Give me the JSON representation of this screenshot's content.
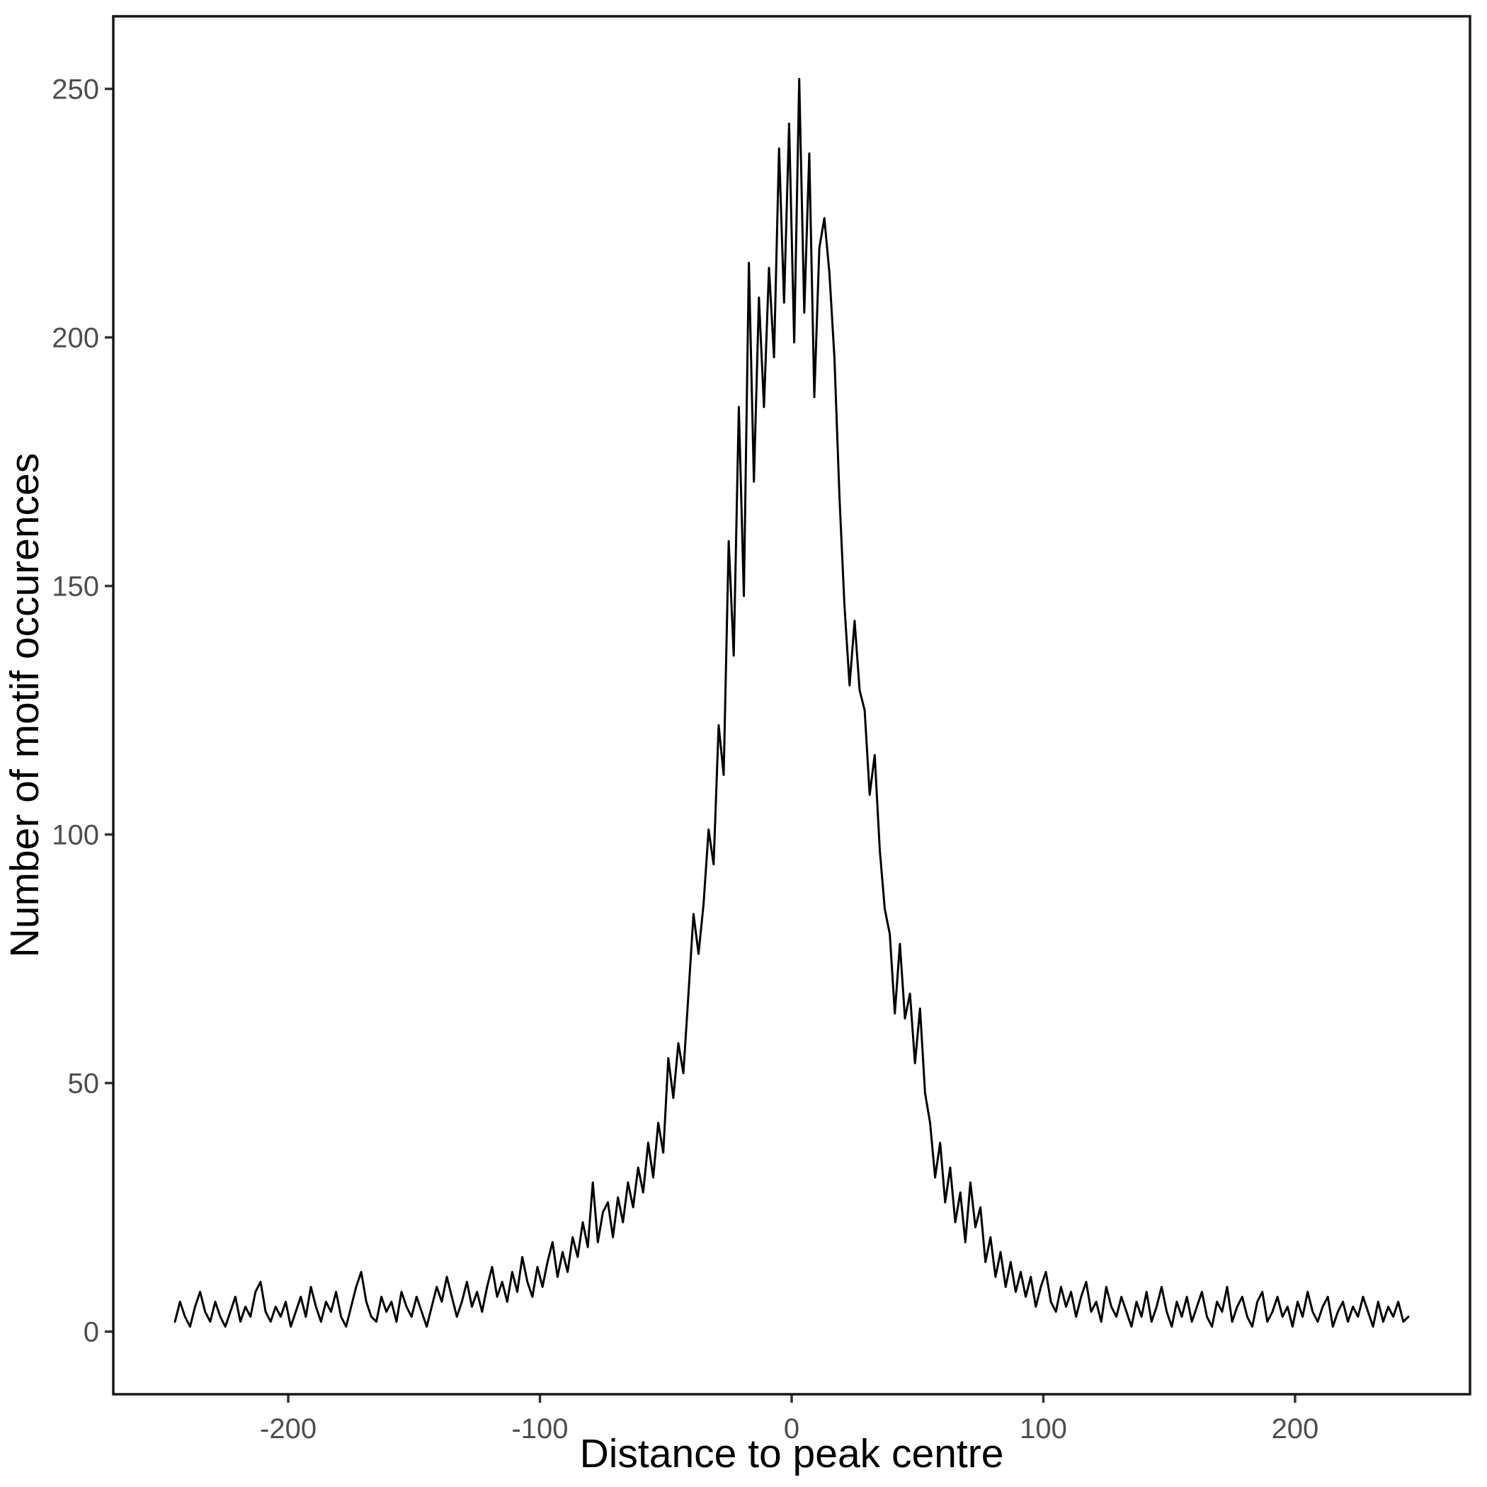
{
  "colors": {
    "background": "#ffffff",
    "panel_border": "#171717",
    "tick_mark": "#333333",
    "tick_label": "#4d4d4d",
    "axis_title": "#000000",
    "line": "#000000"
  },
  "chart_data": {
    "type": "line",
    "title": "",
    "xlabel": "Distance to peak centre",
    "ylabel": "Number of motif occurences",
    "legend": false,
    "grid": false,
    "xlim": [
      -269.5,
      269.5
    ],
    "ylim": [
      -12.6,
      264.6
    ],
    "x_tick_values": [
      -200,
      -100,
      0,
      100,
      200
    ],
    "x_tick_labels": [
      "-200",
      "-100",
      "0",
      "100",
      "200"
    ],
    "y_tick_values": [
      0,
      50,
      100,
      150,
      200,
      250
    ],
    "y_tick_labels": [
      "0",
      "50",
      "100",
      "150",
      "200",
      "250"
    ],
    "series": [
      {
        "name": "motif occurrences",
        "x_start": -245,
        "x_step": 2,
        "values": [
          2,
          6,
          3,
          1,
          5,
          8,
          4,
          2,
          6,
          3,
          1,
          4,
          7,
          2,
          5,
          3,
          8,
          10,
          4,
          2,
          5,
          3,
          6,
          1,
          4,
          7,
          3,
          9,
          5,
          2,
          6,
          4,
          8,
          3,
          1,
          5,
          9,
          12,
          6,
          3,
          2,
          7,
          4,
          6,
          2,
          8,
          5,
          3,
          7,
          4,
          1,
          5,
          9,
          6,
          11,
          7,
          3,
          6,
          10,
          5,
          8,
          4,
          9,
          13,
          7,
          10,
          6,
          12,
          8,
          15,
          10,
          7,
          13,
          9,
          14,
          18,
          11,
          16,
          12,
          19,
          15,
          22,
          17,
          30,
          18,
          24,
          26,
          19,
          27,
          22,
          30,
          25,
          33,
          28,
          38,
          31,
          42,
          36,
          55,
          47,
          58,
          52,
          68,
          84,
          76,
          86,
          101,
          94,
          122,
          112,
          159,
          136,
          186,
          148,
          215,
          171,
          208,
          186,
          214,
          196,
          238,
          207,
          243,
          199,
          252,
          205,
          237,
          188,
          218,
          224,
          213,
          196,
          168,
          146,
          130,
          143,
          129,
          125,
          108,
          116,
          97,
          85,
          80,
          64,
          78,
          63,
          68,
          54,
          65,
          48,
          42,
          31,
          38,
          26,
          33,
          22,
          28,
          18,
          30,
          21,
          25,
          14,
          19,
          11,
          16,
          9,
          14,
          8,
          12,
          7,
          11,
          5,
          9,
          12,
          6,
          4,
          9,
          5,
          8,
          3,
          7,
          10,
          4,
          6,
          2,
          9,
          5,
          3,
          7,
          4,
          1,
          6,
          3,
          8,
          2,
          5,
          9,
          4,
          1,
          6,
          3,
          7,
          2,
          5,
          8,
          3,
          1,
          6,
          4,
          9,
          2,
          5,
          7,
          3,
          1,
          6,
          8,
          2,
          4,
          7,
          3,
          5,
          1,
          6,
          3,
          8,
          4,
          2,
          5,
          7,
          1,
          4,
          6,
          2,
          5,
          3,
          7,
          4,
          1,
          6,
          2,
          5,
          3,
          6,
          2,
          3
        ]
      }
    ]
  }
}
